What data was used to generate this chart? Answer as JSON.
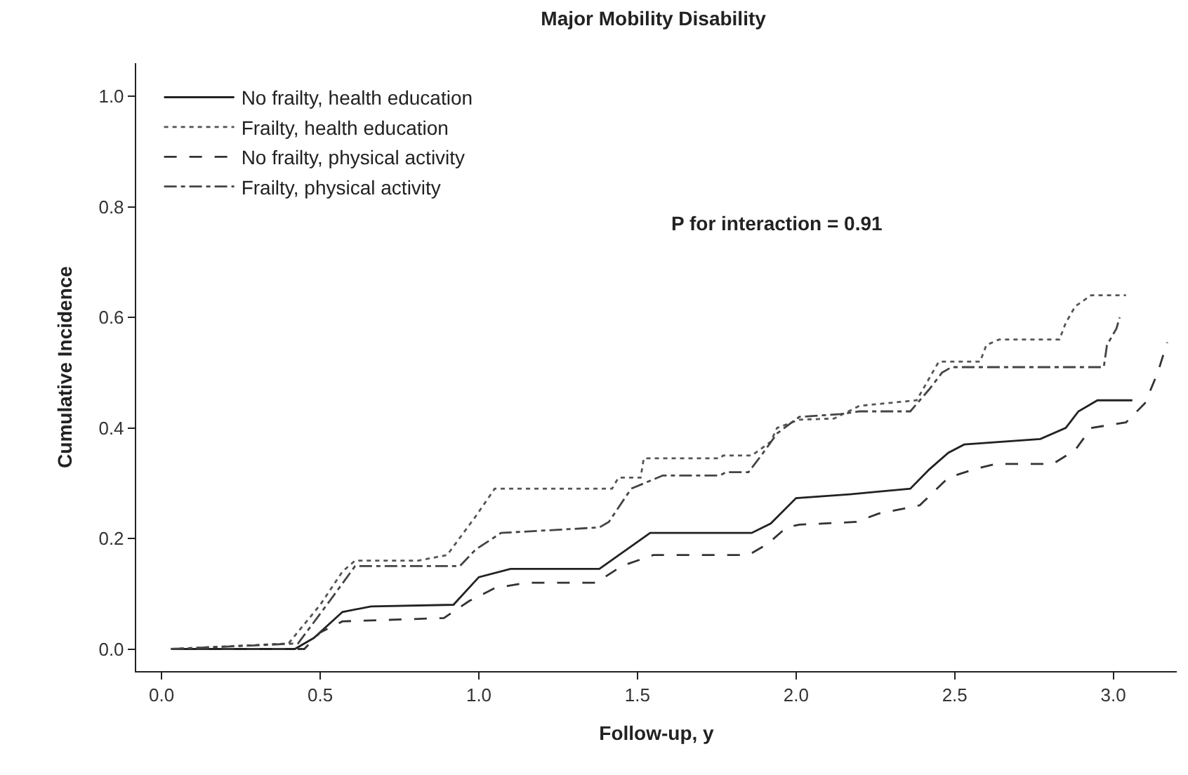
{
  "chart_data": {
    "type": "line",
    "title": "Major Mobility Disability",
    "xlabel": "Follow-up, y",
    "ylabel": "Cumulative Incidence",
    "annotations": [
      "P for interaction = 0.91"
    ],
    "xlim": [
      -0.08,
      3.2
    ],
    "xticks": [
      {
        "value": 0,
        "label": "0.0"
      },
      0.5,
      {
        "value": 1,
        "label": "1.0"
      },
      1.5,
      {
        "value": 2,
        "label": "2.0"
      },
      2.5,
      {
        "value": 3,
        "label": "3.0"
      }
    ],
    "ylim": [
      -0.04,
      1.06
    ],
    "yticks": [
      {
        "value": 0,
        "label": "0.0"
      },
      0.2,
      0.4,
      0.6,
      0.8,
      {
        "value": 1,
        "label": "1.0"
      }
    ],
    "legend": "top left",
    "marker": "none",
    "series": [
      {
        "name": "No frailty, health education",
        "color": "#222222",
        "line_style": "solid",
        "x": [
          0.03,
          0.42,
          0.48,
          0.57,
          0.66,
          0.92,
          1.0,
          1.1,
          1.38,
          1.54,
          1.86,
          1.92,
          2.0,
          2.17,
          2.36,
          2.42,
          2.48,
          2.53,
          2.77,
          2.85,
          2.89,
          2.95,
          3.06
        ],
        "values": [
          0,
          0,
          0.02,
          0.067,
          0.077,
          0.08,
          0.13,
          0.145,
          0.145,
          0.21,
          0.21,
          0.227,
          0.273,
          0.28,
          0.29,
          0.325,
          0.355,
          0.37,
          0.38,
          0.4,
          0.43,
          0.45,
          0.45
        ]
      },
      {
        "name": "Frailty, health education",
        "color": "#555555",
        "line_style": "dotted",
        "x": [
          0.03,
          0.4,
          0.5,
          0.57,
          0.61,
          0.81,
          0.9,
          0.99,
          1.05,
          1.42,
          1.44,
          1.51,
          1.52,
          1.76,
          1.77,
          1.86,
          1.92,
          1.94,
          2.01,
          2.12,
          2.2,
          2.38,
          2.44,
          2.45,
          2.58,
          2.6,
          2.64,
          2.83,
          2.85,
          2.88,
          2.93,
          3.04
        ],
        "values": [
          0,
          0.01,
          0.08,
          0.14,
          0.16,
          0.16,
          0.17,
          0.24,
          0.29,
          0.29,
          0.31,
          0.31,
          0.345,
          0.345,
          0.35,
          0.35,
          0.375,
          0.4,
          0.415,
          0.417,
          0.44,
          0.45,
          0.51,
          0.52,
          0.52,
          0.55,
          0.56,
          0.56,
          0.59,
          0.62,
          0.64,
          0.64
        ]
      },
      {
        "name": "No frailty, physical activity",
        "color": "#333333",
        "line_style": "dashed",
        "x": [
          0.03,
          0.45,
          0.5,
          0.57,
          0.89,
          0.97,
          1.05,
          1.15,
          1.37,
          1.45,
          1.55,
          1.85,
          1.91,
          1.97,
          2.01,
          2.19,
          2.26,
          2.39,
          2.48,
          2.56,
          2.63,
          2.81,
          2.88,
          2.93,
          3.04,
          3.1,
          3.14,
          3.17
        ],
        "values": [
          0,
          0,
          0.03,
          0.05,
          0.056,
          0.087,
          0.11,
          0.12,
          0.12,
          0.15,
          0.17,
          0.17,
          0.19,
          0.22,
          0.225,
          0.23,
          0.245,
          0.26,
          0.31,
          0.325,
          0.335,
          0.335,
          0.36,
          0.4,
          0.41,
          0.445,
          0.5,
          0.555
        ]
      },
      {
        "name": "Frailty, physical activity",
        "color": "#444444",
        "line_style": "dashdot",
        "x": [
          0.03,
          0.43,
          0.53,
          0.61,
          0.94,
          0.99,
          1.07,
          1.38,
          1.41,
          1.48,
          1.58,
          1.76,
          1.78,
          1.85,
          1.89,
          1.94,
          2.01,
          2.14,
          2.2,
          2.36,
          2.42,
          2.46,
          2.49,
          2.97,
          2.98,
          3.01,
          3.02
        ],
        "values": [
          0,
          0.01,
          0.087,
          0.15,
          0.15,
          0.18,
          0.21,
          0.22,
          0.23,
          0.29,
          0.314,
          0.314,
          0.32,
          0.32,
          0.35,
          0.39,
          0.42,
          0.425,
          0.43,
          0.43,
          0.47,
          0.5,
          0.51,
          0.51,
          0.55,
          0.58,
          0.6
        ]
      }
    ]
  }
}
